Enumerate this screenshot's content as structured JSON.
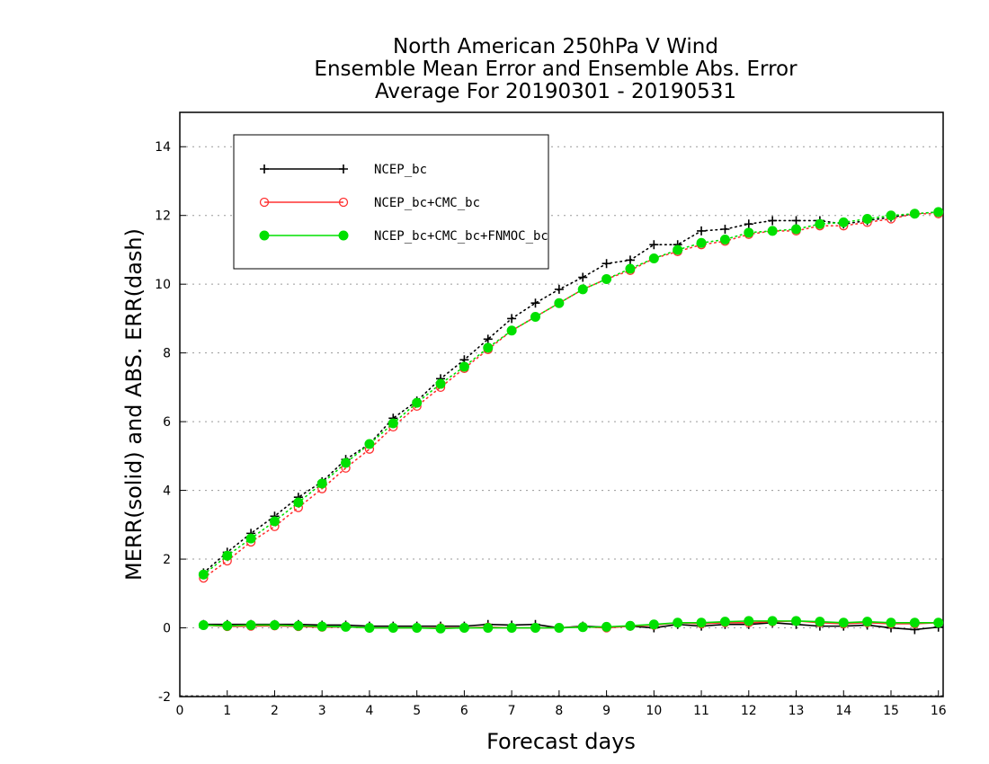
{
  "chart_data": {
    "type": "line",
    "title_lines": [
      "North American 250hPa V Wind",
      "Ensemble Mean Error and Ensemble Abs. Error",
      "Average For 20190301 - 20190531"
    ],
    "xlabel": "Forecast days",
    "ylabel": "MERR(solid) and ABS. ERR(dash)",
    "xlim": [
      0,
      16.1
    ],
    "ylim": [
      -2,
      15
    ],
    "xticks": [
      "0",
      "1",
      "2",
      "3",
      "4",
      "5",
      "6",
      "7",
      "8",
      "9",
      "10",
      "11",
      "12",
      "13",
      "14",
      "15",
      "16"
    ],
    "yticks": [
      "-2",
      "0",
      "2",
      "4",
      "6",
      "8",
      "10",
      "12",
      "14"
    ],
    "grid": "dotted horizontal at major y ticks",
    "legend_position": "top-left",
    "x": [
      0.5,
      1,
      1.5,
      2,
      2.5,
      3,
      3.5,
      4,
      4.5,
      5,
      5.5,
      6,
      6.5,
      7,
      7.5,
      8,
      8.5,
      9,
      9.5,
      10,
      10.5,
      11,
      11.5,
      12,
      12.5,
      13,
      13.5,
      14,
      14.5,
      15,
      15.5,
      16
    ],
    "series": [
      {
        "name": "NCEP_bc",
        "color": "#000000",
        "marker": "plus",
        "abs_err": [
          1.6,
          2.2,
          2.75,
          3.25,
          3.8,
          4.25,
          4.9,
          5.35,
          6.1,
          6.6,
          7.25,
          7.8,
          8.4,
          9.0,
          9.45,
          9.85,
          10.2,
          10.6,
          10.7,
          11.15,
          11.15,
          11.55,
          11.6,
          11.75,
          11.85,
          11.85,
          11.85,
          11.75,
          11.85,
          11.95,
          12.05,
          12.1
        ],
        "mean_err": [
          0.1,
          0.1,
          0.1,
          0.1,
          0.1,
          0.08,
          0.08,
          0.05,
          0.05,
          0.05,
          0.05,
          0.05,
          0.1,
          0.08,
          0.1,
          0.0,
          0.05,
          0.02,
          0.05,
          0.0,
          0.1,
          0.05,
          0.1,
          0.1,
          0.15,
          0.1,
          0.05,
          0.05,
          0.08,
          0.0,
          -0.05,
          0.02
        ]
      },
      {
        "name": "NCEP_bc+CMC_bc",
        "color": "#ff3030",
        "marker": "open-circle",
        "abs_err": [
          1.45,
          1.95,
          2.5,
          2.95,
          3.5,
          4.05,
          4.65,
          5.2,
          5.85,
          6.45,
          7.0,
          7.55,
          8.1,
          8.65,
          9.05,
          9.45,
          9.85,
          10.15,
          10.4,
          10.75,
          10.95,
          11.15,
          11.25,
          11.45,
          11.55,
          11.55,
          11.7,
          11.7,
          11.8,
          11.9,
          12.05,
          12.05
        ],
        "mean_err": [
          0.08,
          0.04,
          0.05,
          0.06,
          0.04,
          0.02,
          0.03,
          0.0,
          0.0,
          0.0,
          0.0,
          0.0,
          0.02,
          0.0,
          0.0,
          0.0,
          0.03,
          0.0,
          0.05,
          0.08,
          0.15,
          0.12,
          0.15,
          0.15,
          0.18,
          0.2,
          0.15,
          0.12,
          0.15,
          0.12,
          0.12,
          0.15
        ]
      },
      {
        "name": "NCEP_bc+CMC_bc+FNMOC_bc",
        "color": "#00e000",
        "marker": "filled-circle",
        "abs_err": [
          1.55,
          2.1,
          2.6,
          3.1,
          3.65,
          4.2,
          4.8,
          5.35,
          5.95,
          6.55,
          7.1,
          7.6,
          8.15,
          8.65,
          9.05,
          9.45,
          9.85,
          10.15,
          10.45,
          10.75,
          11.0,
          11.2,
          11.3,
          11.5,
          11.55,
          11.6,
          11.75,
          11.8,
          11.9,
          12.0,
          12.05,
          12.1
        ],
        "mean_err": [
          0.08,
          0.06,
          0.08,
          0.08,
          0.06,
          0.04,
          0.03,
          0.0,
          0.0,
          0.0,
          -0.02,
          0.0,
          0.0,
          0.0,
          0.0,
          0.0,
          0.02,
          0.03,
          0.06,
          0.1,
          0.15,
          0.15,
          0.18,
          0.2,
          0.2,
          0.2,
          0.18,
          0.15,
          0.18,
          0.15,
          0.15,
          0.15
        ]
      }
    ]
  }
}
